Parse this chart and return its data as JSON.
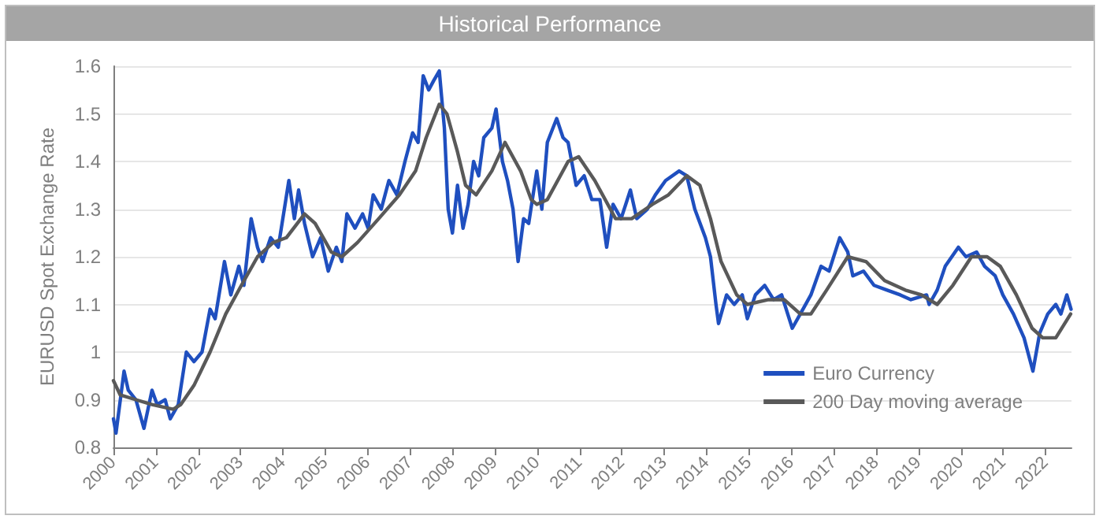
{
  "chart_data": {
    "type": "line",
    "title": "Historical Performance",
    "ylabel": "EURUSD Spot Exchange Rate",
    "xlim": [
      2000,
      2022.61
    ],
    "xticks": [
      2000,
      2001,
      2002,
      2003,
      2004,
      2005,
      2006,
      2007,
      2008,
      2009,
      2010,
      2011,
      2012,
      2013,
      2014,
      2015,
      2016,
      2017,
      2018,
      2019,
      2020,
      2021,
      2022
    ],
    "ylim": [
      0.8,
      1.6
    ],
    "yticks": [
      0.8,
      0.9,
      1,
      1.1,
      1.2,
      1.3,
      1.4,
      1.5,
      1.6
    ],
    "grid": "y",
    "legend": "bottom right",
    "marker": "none",
    "line_style": "solid",
    "series": [
      {
        "name": "Euro Currency",
        "color": "#1f4fbf",
        "x": [
          2000.0,
          2000.06,
          2000.25,
          2000.35,
          2000.53,
          2000.72,
          2000.91,
          2001.03,
          2001.22,
          2001.34,
          2001.53,
          2001.72,
          2001.9,
          2002.09,
          2002.28,
          2002.4,
          2002.62,
          2002.77,
          2002.96,
          2003.08,
          2003.25,
          2003.4,
          2003.52,
          2003.71,
          2003.89,
          2004.14,
          2004.27,
          2004.37,
          2004.51,
          2004.7,
          2004.89,
          2005.07,
          2005.26,
          2005.39,
          2005.51,
          2005.7,
          2005.88,
          2006.01,
          2006.13,
          2006.32,
          2006.5,
          2006.69,
          2006.88,
          2007.06,
          2007.19,
          2007.31,
          2007.44,
          2007.56,
          2007.69,
          2007.81,
          2007.9,
          2008.0,
          2008.12,
          2008.25,
          2008.37,
          2008.5,
          2008.62,
          2008.74,
          2008.93,
          2009.03,
          2009.18,
          2009.3,
          2009.43,
          2009.55,
          2009.68,
          2009.8,
          2009.99,
          2010.11,
          2010.24,
          2010.46,
          2010.61,
          2010.73,
          2010.92,
          2011.11,
          2011.29,
          2011.48,
          2011.64,
          2011.79,
          2011.98,
          2012.2,
          2012.35,
          2012.6,
          2012.79,
          2013.03,
          2013.35,
          2013.53,
          2013.72,
          2013.97,
          2014.09,
          2014.22,
          2014.28,
          2014.47,
          2014.65,
          2014.84,
          2014.96,
          2015.15,
          2015.37,
          2015.58,
          2015.77,
          2016.02,
          2016.21,
          2016.46,
          2016.7,
          2016.89,
          2017.14,
          2017.33,
          2017.45,
          2017.7,
          2017.95,
          2018.26,
          2018.57,
          2018.82,
          2019.19,
          2019.25,
          2019.44,
          2019.63,
          2019.94,
          2020.12,
          2020.37,
          2020.56,
          2020.81,
          2020.99,
          2021.24,
          2021.49,
          2021.7,
          2021.86,
          2022.05,
          2022.24,
          2022.36,
          2022.5,
          2022.6
        ],
        "values": [
          0.86,
          0.83,
          0.96,
          0.92,
          0.9,
          0.84,
          0.92,
          0.89,
          0.9,
          0.86,
          0.89,
          1.0,
          0.98,
          1.0,
          1.09,
          1.07,
          1.19,
          1.12,
          1.18,
          1.14,
          1.28,
          1.22,
          1.19,
          1.24,
          1.22,
          1.36,
          1.28,
          1.34,
          1.27,
          1.2,
          1.24,
          1.17,
          1.22,
          1.19,
          1.29,
          1.26,
          1.29,
          1.26,
          1.33,
          1.3,
          1.36,
          1.33,
          1.4,
          1.46,
          1.44,
          1.58,
          1.55,
          1.57,
          1.59,
          1.47,
          1.3,
          1.25,
          1.35,
          1.26,
          1.31,
          1.4,
          1.37,
          1.45,
          1.47,
          1.51,
          1.4,
          1.36,
          1.3,
          1.19,
          1.28,
          1.27,
          1.38,
          1.3,
          1.44,
          1.49,
          1.45,
          1.44,
          1.35,
          1.37,
          1.32,
          1.32,
          1.22,
          1.31,
          1.28,
          1.34,
          1.28,
          1.3,
          1.33,
          1.36,
          1.38,
          1.37,
          1.3,
          1.24,
          1.2,
          1.1,
          1.06,
          1.12,
          1.1,
          1.12,
          1.07,
          1.12,
          1.14,
          1.11,
          1.12,
          1.05,
          1.08,
          1.12,
          1.18,
          1.17,
          1.24,
          1.21,
          1.16,
          1.17,
          1.14,
          1.13,
          1.12,
          1.11,
          1.12,
          1.1,
          1.13,
          1.18,
          1.22,
          1.2,
          1.21,
          1.18,
          1.16,
          1.12,
          1.08,
          1.03,
          0.96,
          1.04,
          1.08,
          1.1,
          1.08,
          1.12,
          1.09
        ]
      },
      {
        "name": "200 Day moving average",
        "color": "#595959",
        "x": [
          2000.0,
          2000.16,
          2000.53,
          2000.91,
          2001.41,
          2001.59,
          2001.9,
          2002.28,
          2002.65,
          2003.02,
          2003.4,
          2003.77,
          2004.08,
          2004.51,
          2004.76,
          2005.14,
          2005.39,
          2005.76,
          2006.26,
          2006.75,
          2007.13,
          2007.38,
          2007.69,
          2007.87,
          2008.12,
          2008.31,
          2008.56,
          2008.93,
          2009.24,
          2009.61,
          2009.86,
          2009.99,
          2010.24,
          2010.73,
          2010.98,
          2011.36,
          2011.85,
          2012.23,
          2012.72,
          2013.1,
          2013.53,
          2013.84,
          2014.09,
          2014.34,
          2014.71,
          2014.96,
          2015.46,
          2015.83,
          2016.21,
          2016.46,
          2016.83,
          2017.33,
          2017.76,
          2018.2,
          2018.69,
          2019.07,
          2019.44,
          2019.81,
          2020.25,
          2020.62,
          2020.93,
          2021.31,
          2021.68,
          2021.93,
          2022.24,
          2022.59
        ],
        "values": [
          0.94,
          0.91,
          0.9,
          0.89,
          0.88,
          0.89,
          0.93,
          1.0,
          1.08,
          1.14,
          1.2,
          1.23,
          1.24,
          1.29,
          1.27,
          1.21,
          1.2,
          1.23,
          1.28,
          1.33,
          1.38,
          1.45,
          1.52,
          1.5,
          1.42,
          1.35,
          1.33,
          1.38,
          1.44,
          1.38,
          1.32,
          1.31,
          1.32,
          1.4,
          1.41,
          1.36,
          1.28,
          1.28,
          1.31,
          1.33,
          1.37,
          1.35,
          1.28,
          1.19,
          1.12,
          1.1,
          1.11,
          1.11,
          1.08,
          1.08,
          1.13,
          1.2,
          1.19,
          1.15,
          1.13,
          1.12,
          1.1,
          1.14,
          1.2,
          1.2,
          1.18,
          1.12,
          1.05,
          1.03,
          1.03,
          1.08
        ]
      }
    ]
  }
}
